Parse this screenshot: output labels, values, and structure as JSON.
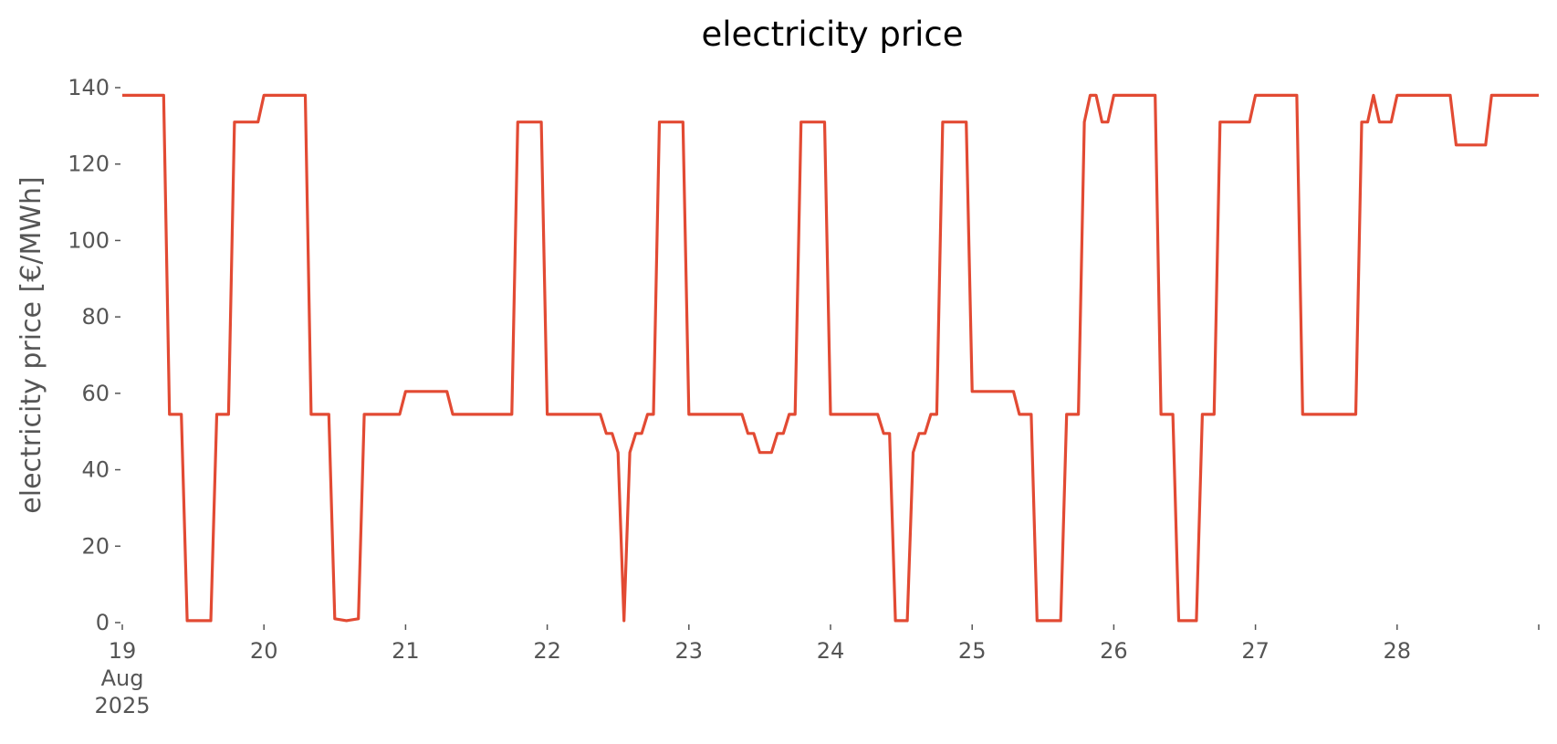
{
  "chart_data": {
    "type": "line",
    "title": "electricity price",
    "ylabel": "electricity price [€/MWh]",
    "xlabel": "",
    "ylim": [
      0,
      140
    ],
    "xlim": [
      "2025-08-19T00:00",
      "2025-08-29T00:00"
    ],
    "yticks": [
      0,
      20,
      40,
      60,
      80,
      100,
      120,
      140
    ],
    "xticks": [
      {
        "date": "2025-08-19",
        "lines": [
          "19",
          "Aug",
          "2025"
        ]
      },
      {
        "date": "2025-08-20",
        "lines": [
          "20"
        ]
      },
      {
        "date": "2025-08-21",
        "lines": [
          "21"
        ]
      },
      {
        "date": "2025-08-22",
        "lines": [
          "22"
        ]
      },
      {
        "date": "2025-08-23",
        "lines": [
          "23"
        ]
      },
      {
        "date": "2025-08-24",
        "lines": [
          "24"
        ]
      },
      {
        "date": "2025-08-25",
        "lines": [
          "25"
        ]
      },
      {
        "date": "2025-08-26",
        "lines": [
          "26"
        ]
      },
      {
        "date": "2025-08-27",
        "lines": [
          "27"
        ]
      },
      {
        "date": "2025-08-28",
        "lines": [
          "28"
        ]
      },
      {
        "date": "2025-08-29",
        "lines": [
          ""
        ]
      }
    ],
    "grid": false,
    "series": [
      {
        "color": "#E24A33",
        "points": [
          [
            "2025-08-19T00:00",
            138
          ],
          [
            "2025-08-19T07:00",
            138
          ],
          [
            "2025-08-19T08:00",
            54.5
          ],
          [
            "2025-08-19T10:00",
            54.5
          ],
          [
            "2025-08-19T11:00",
            0.5
          ],
          [
            "2025-08-19T15:00",
            0.5
          ],
          [
            "2025-08-19T16:00",
            54.5
          ],
          [
            "2025-08-19T18:00",
            54.5
          ],
          [
            "2025-08-19T19:00",
            131
          ],
          [
            "2025-08-19T23:00",
            131
          ],
          [
            "2025-08-20T00:00",
            138
          ],
          [
            "2025-08-20T07:00",
            138
          ],
          [
            "2025-08-20T08:00",
            54.5
          ],
          [
            "2025-08-20T11:00",
            54.5
          ],
          [
            "2025-08-20T12:00",
            1
          ],
          [
            "2025-08-20T14:00",
            0.5
          ],
          [
            "2025-08-20T16:00",
            1
          ],
          [
            "2025-08-20T17:00",
            54.5
          ],
          [
            "2025-08-20T23:00",
            54.5
          ],
          [
            "2025-08-21T00:00",
            60.5
          ],
          [
            "2025-08-21T07:00",
            60.5
          ],
          [
            "2025-08-21T08:00",
            54.5
          ],
          [
            "2025-08-21T18:00",
            54.5
          ],
          [
            "2025-08-21T19:00",
            131
          ],
          [
            "2025-08-21T23:00",
            131
          ],
          [
            "2025-08-22T00:00",
            54.5
          ],
          [
            "2025-08-22T09:00",
            54.5
          ],
          [
            "2025-08-22T10:00",
            49.5
          ],
          [
            "2025-08-22T11:00",
            49.5
          ],
          [
            "2025-08-22T12:00",
            44.5
          ],
          [
            "2025-08-22T13:00",
            0.5
          ],
          [
            "2025-08-22T14:00",
            44.5
          ],
          [
            "2025-08-22T15:00",
            49.5
          ],
          [
            "2025-08-22T16:00",
            49.5
          ],
          [
            "2025-08-22T17:00",
            54.5
          ],
          [
            "2025-08-22T18:00",
            54.5
          ],
          [
            "2025-08-22T19:00",
            131
          ],
          [
            "2025-08-22T23:00",
            131
          ],
          [
            "2025-08-23T00:00",
            54.5
          ],
          [
            "2025-08-23T09:00",
            54.5
          ],
          [
            "2025-08-23T10:00",
            49.5
          ],
          [
            "2025-08-23T11:00",
            49.5
          ],
          [
            "2025-08-23T12:00",
            44.5
          ],
          [
            "2025-08-23T14:00",
            44.5
          ],
          [
            "2025-08-23T15:00",
            49.5
          ],
          [
            "2025-08-23T16:00",
            49.5
          ],
          [
            "2025-08-23T17:00",
            54.5
          ],
          [
            "2025-08-23T18:00",
            54.5
          ],
          [
            "2025-08-23T19:00",
            131
          ],
          [
            "2025-08-23T23:00",
            131
          ],
          [
            "2025-08-24T00:00",
            54.5
          ],
          [
            "2025-08-24T08:00",
            54.5
          ],
          [
            "2025-08-24T09:00",
            49.5
          ],
          [
            "2025-08-24T10:00",
            49.5
          ],
          [
            "2025-08-24T11:00",
            0.5
          ],
          [
            "2025-08-24T13:00",
            0.5
          ],
          [
            "2025-08-24T14:00",
            44.5
          ],
          [
            "2025-08-24T15:00",
            49.5
          ],
          [
            "2025-08-24T16:00",
            49.5
          ],
          [
            "2025-08-24T17:00",
            54.5
          ],
          [
            "2025-08-24T18:00",
            54.5
          ],
          [
            "2025-08-24T19:00",
            131
          ],
          [
            "2025-08-24T23:00",
            131
          ],
          [
            "2025-08-25T00:00",
            60.5
          ],
          [
            "2025-08-25T07:00",
            60.5
          ],
          [
            "2025-08-25T08:00",
            54.5
          ],
          [
            "2025-08-25T10:00",
            54.5
          ],
          [
            "2025-08-25T11:00",
            0.5
          ],
          [
            "2025-08-25T15:00",
            0.5
          ],
          [
            "2025-08-25T16:00",
            54.5
          ],
          [
            "2025-08-25T18:00",
            54.5
          ],
          [
            "2025-08-25T19:00",
            131
          ],
          [
            "2025-08-25T20:00",
            138
          ],
          [
            "2025-08-25T21:00",
            138
          ],
          [
            "2025-08-25T22:00",
            131
          ],
          [
            "2025-08-25T23:00",
            131
          ],
          [
            "2025-08-26T00:00",
            138
          ],
          [
            "2025-08-26T07:00",
            138
          ],
          [
            "2025-08-26T08:00",
            54.5
          ],
          [
            "2025-08-26T10:00",
            54.5
          ],
          [
            "2025-08-26T11:00",
            0.5
          ],
          [
            "2025-08-26T14:00",
            0.5
          ],
          [
            "2025-08-26T15:00",
            54.5
          ],
          [
            "2025-08-26T17:00",
            54.5
          ],
          [
            "2025-08-26T18:00",
            131
          ],
          [
            "2025-08-26T23:00",
            131
          ],
          [
            "2025-08-27T00:00",
            138
          ],
          [
            "2025-08-27T07:00",
            138
          ],
          [
            "2025-08-27T08:00",
            54.5
          ],
          [
            "2025-08-27T17:00",
            54.5
          ],
          [
            "2025-08-27T18:00",
            131
          ],
          [
            "2025-08-27T19:00",
            131
          ],
          [
            "2025-08-27T20:00",
            138
          ],
          [
            "2025-08-27T21:00",
            131
          ],
          [
            "2025-08-27T23:00",
            131
          ],
          [
            "2025-08-28T00:00",
            138
          ],
          [
            "2025-08-28T09:00",
            138
          ],
          [
            "2025-08-28T10:00",
            125
          ],
          [
            "2025-08-28T15:00",
            125
          ],
          [
            "2025-08-28T16:00",
            138
          ],
          [
            "2025-08-29T00:00",
            138
          ]
        ]
      }
    ]
  }
}
